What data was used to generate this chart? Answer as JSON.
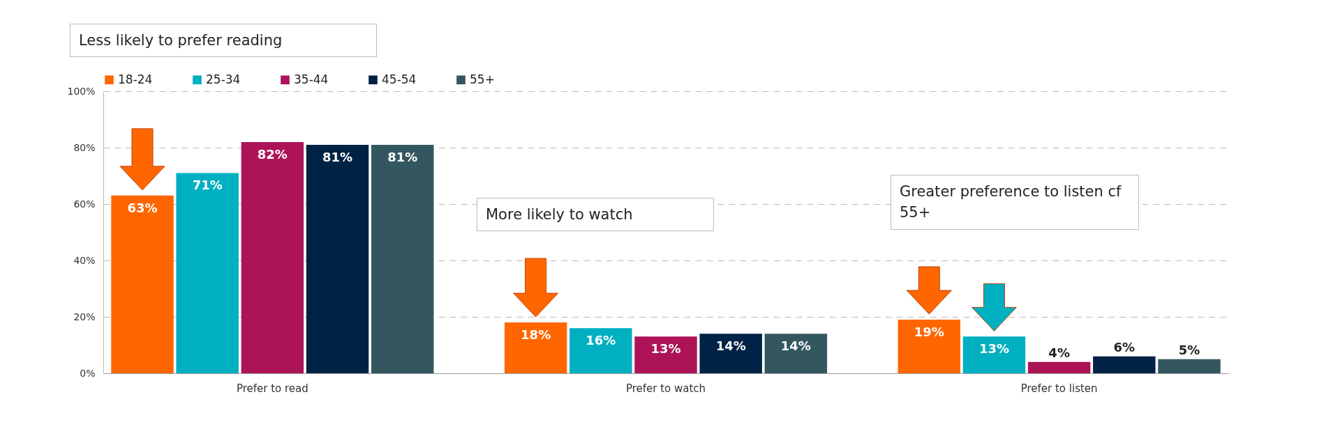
{
  "chart_data": {
    "type": "bar",
    "categories": [
      "Prefer to read",
      "Prefer to watch",
      "Prefer to listen"
    ],
    "series": [
      {
        "name": "18-24",
        "color": "#ff6600",
        "values": [
          63,
          18,
          19
        ],
        "value_labels": [
          "63%",
          "18%",
          "19%"
        ]
      },
      {
        "name": "25-34",
        "color": "#00b0c0",
        "values": [
          71,
          16,
          13
        ],
        "value_labels": [
          "71%",
          "16%",
          "13%"
        ]
      },
      {
        "name": "35-44",
        "color": "#ad1457",
        "values": [
          82,
          13,
          4
        ],
        "value_labels": [
          "82%",
          "13%",
          "4%"
        ]
      },
      {
        "name": "45-54",
        "color": "#002244",
        "values": [
          81,
          14,
          6
        ],
        "value_labels": [
          "81%",
          "14%",
          "6%"
        ]
      },
      {
        "name": "55+",
        "color": "#34575f",
        "values": [
          81,
          14,
          5
        ],
        "value_labels": [
          "81%",
          "14%",
          "5%"
        ]
      }
    ],
    "ylim": [
      0,
      100
    ],
    "yticks": [
      {
        "value": 0,
        "label": "0%"
      },
      {
        "value": 20,
        "label": "20%"
      },
      {
        "value": 40,
        "label": "40%"
      },
      {
        "value": 60,
        "label": "60%"
      },
      {
        "value": 80,
        "label": "80%"
      },
      {
        "value": 100,
        "label": "100%"
      }
    ],
    "grid": "y",
    "legend": "top",
    "annotations": [
      "Less likely to prefer reading",
      "More likely to watch",
      "Greater preference to listen cf 55+"
    ]
  }
}
